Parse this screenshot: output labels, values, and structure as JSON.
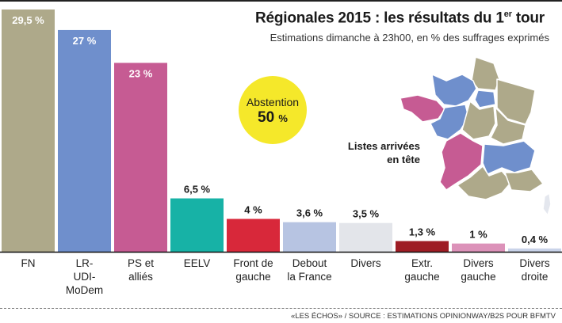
{
  "header": {
    "title": "Régionales 2015 : les résultats du 1",
    "title_sup": "er",
    "title_end": " tour",
    "subtitle": "Estimations dimanche à 23h00, en % des suffrages exprimés"
  },
  "abstention": {
    "label": "Abstention",
    "value": "50",
    "unit": "%"
  },
  "map": {
    "label_line1": "Listes arrivées",
    "label_line2": "en tête",
    "colors": {
      "FN": "#aea98a",
      "LR-UDI-MoDem": "#6f8fcc",
      "PS et alliés": "#c65b93",
      "Corse": "#e4e7ee"
    }
  },
  "footer": {
    "source": "«LES ÉCHOS» / SOURCE : ESTIMATIONS OPINIONWAY/B2S POUR BFMTV"
  },
  "chart_data": {
    "type": "bar",
    "title": "Régionales 2015 : les résultats du 1er tour",
    "subtitle": "Estimations dimanche à 23h00, en % des suffrages exprimés",
    "xlabel": "",
    "ylabel": "% des suffrages exprimés",
    "ylim": [
      0,
      29.5
    ],
    "grid": false,
    "categories": [
      "FN",
      "LR-UDI-MoDem",
      "PS et alliés",
      "EELV",
      "Front de gauche",
      "Debout la France",
      "Divers",
      "Extr. gauche",
      "Divers gauche",
      "Divers droite"
    ],
    "category_lines": [
      [
        "FN"
      ],
      [
        "LR-",
        "UDI-",
        "MoDem"
      ],
      [
        "PS et",
        "alliés"
      ],
      [
        "EELV"
      ],
      [
        "Front de",
        "gauche"
      ],
      [
        "Debout",
        "la France"
      ],
      [
        "Divers"
      ],
      [
        "Extr.",
        "gauche"
      ],
      [
        "Divers",
        "gauche"
      ],
      [
        "Divers",
        "droite"
      ]
    ],
    "values": [
      29.5,
      27,
      23,
      6.5,
      4,
      3.6,
      3.5,
      1.3,
      1,
      0.4
    ],
    "value_labels": [
      "29,5 %",
      "27 %",
      "23 %",
      "6,5 %",
      "4 %",
      "3,6 %",
      "3,5 %",
      "1,3 %",
      "1 %",
      "0,4 %"
    ],
    "colors": [
      "#aea98a",
      "#6f8fcc",
      "#c65b93",
      "#17b2a6",
      "#d8283a",
      "#b7c4e2",
      "#e3e5ea",
      "#9e1c24",
      "#dc92b9",
      "#c9d3e9"
    ],
    "labels_inside": [
      true,
      true,
      true,
      false,
      false,
      false,
      false,
      false,
      false,
      false
    ]
  }
}
